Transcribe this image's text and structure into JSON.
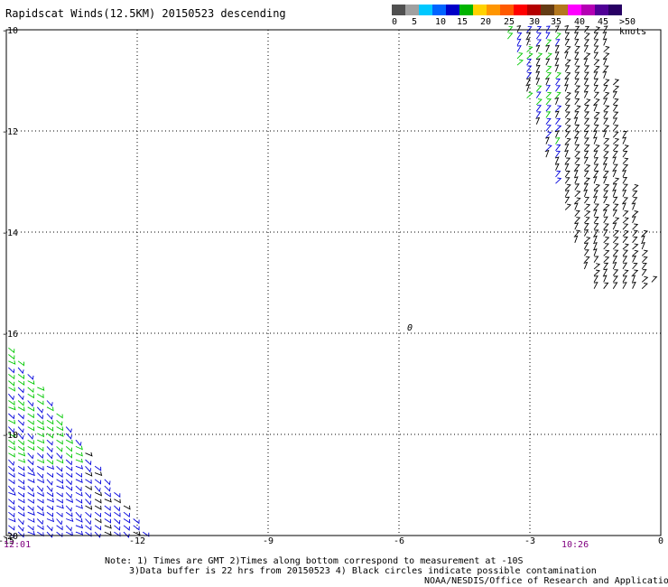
{
  "title": "Rapidscat Winds(12.5KM) 20150523 descending",
  "colorbar": {
    "labels": [
      "0",
      "5",
      "10",
      "15",
      "20",
      "25",
      "30",
      "35",
      "40",
      "45",
      ">50 knots"
    ],
    "colors": [
      "#505050",
      "#a0a0a0",
      "#00c8ff",
      "#0064ff",
      "#0000c8",
      "#00b400",
      "#ffd200",
      "#ff9600",
      "#ff5a00",
      "#ff0000",
      "#b40000",
      "#643c14",
      "#b4781e",
      "#ff00ff",
      "#b400b4",
      "#500096",
      "#280064"
    ]
  },
  "y_axis": {
    "ticks": [
      "-10",
      "-12",
      "-14",
      "-16",
      "-18",
      "-20"
    ]
  },
  "x_axis": {
    "ticks": [
      "-15",
      "-12",
      "-9",
      "-6",
      "-3",
      "0"
    ]
  },
  "times": {
    "left": "12:01",
    "right": "10:26"
  },
  "zero_label": "0",
  "notes": {
    "line1": "Note: 1) Times are GMT 2)Times along bottom correspond to measurement at -10S",
    "line2": "3)Data buffer is 22 hrs from 20150523 4) Black circles indicate possible contamination",
    "line3": "NOAA/NESDIS/Office of Research and Applications"
  },
  "map_data": {
    "lon_range": [
      -15,
      0
    ],
    "lat_range": [
      -20,
      -10
    ],
    "swaths": [
      {
        "name": "east-swath",
        "polygon": [
          [
            -1.3,
            -10
          ],
          [
            -3.6,
            -10
          ],
          [
            -1.6,
            -15.2
          ],
          [
            -0.4,
            -15.2
          ],
          [
            -0.2,
            -15.0
          ],
          [
            -0.8,
            -12.4
          ]
        ]
      },
      {
        "name": "southwest-swath",
        "polygon": [
          [
            -15,
            -16.2
          ],
          [
            -15,
            -20
          ],
          [
            -11.8,
            -20
          ],
          [
            -12.3,
            -19.3
          ],
          [
            -14.0,
            -17.3
          ]
        ]
      }
    ],
    "wind_colors": {
      "black": "#000000",
      "green": "#00c800",
      "blue": "#0000dc"
    }
  }
}
